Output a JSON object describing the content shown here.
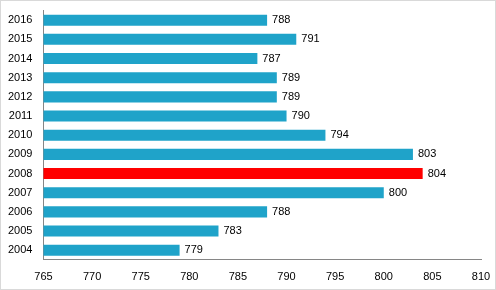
{
  "chart_data": {
    "type": "bar",
    "orientation": "horizontal",
    "categories": [
      "2004",
      "2005",
      "2006",
      "2007",
      "2008",
      "2009",
      "2010",
      "2011",
      "2012",
      "2013",
      "2014",
      "2015",
      "2016"
    ],
    "values": [
      779,
      783,
      788,
      800,
      804,
      803,
      794,
      790,
      789,
      789,
      787,
      791,
      788
    ],
    "colors": [
      "#1fa3c9",
      "#1fa3c9",
      "#1fa3c9",
      "#1fa3c9",
      "#ff0000",
      "#1fa3c9",
      "#1fa3c9",
      "#1fa3c9",
      "#1fa3c9",
      "#1fa3c9",
      "#1fa3c9",
      "#1fa3c9",
      "#1fa3c9"
    ],
    "xlim": [
      765,
      810
    ],
    "xticks": [
      765,
      770,
      775,
      780,
      785,
      790,
      795,
      800,
      805,
      810
    ],
    "grid": false,
    "data_labels": true
  }
}
